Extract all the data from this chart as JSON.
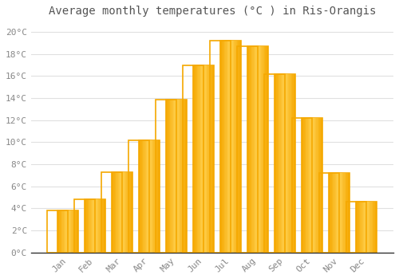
{
  "title": "Average monthly temperatures (°C ) in Ris-Orangis",
  "months": [
    "Jan",
    "Feb",
    "Mar",
    "Apr",
    "May",
    "Jun",
    "Jul",
    "Aug",
    "Sep",
    "Oct",
    "Nov",
    "Dec"
  ],
  "temperatures": [
    3.8,
    4.8,
    7.3,
    10.2,
    13.9,
    17.0,
    19.2,
    18.7,
    16.2,
    12.2,
    7.2,
    4.6
  ],
  "bar_color_inner": "#FFD050",
  "bar_color_edge": "#F5A800",
  "background_color": "#FFFFFF",
  "grid_color": "#E0E0E0",
  "ylim": [
    0,
    21
  ],
  "yticks": [
    0,
    2,
    4,
    6,
    8,
    10,
    12,
    14,
    16,
    18,
    20
  ],
  "ytick_labels": [
    "0°C",
    "2°C",
    "4°C",
    "6°C",
    "8°C",
    "10°C",
    "12°C",
    "14°C",
    "16°C",
    "18°C",
    "20°C"
  ],
  "title_fontsize": 10,
  "tick_fontsize": 8,
  "font_family": "monospace",
  "tick_color": "#888888",
  "bar_width": 0.75
}
